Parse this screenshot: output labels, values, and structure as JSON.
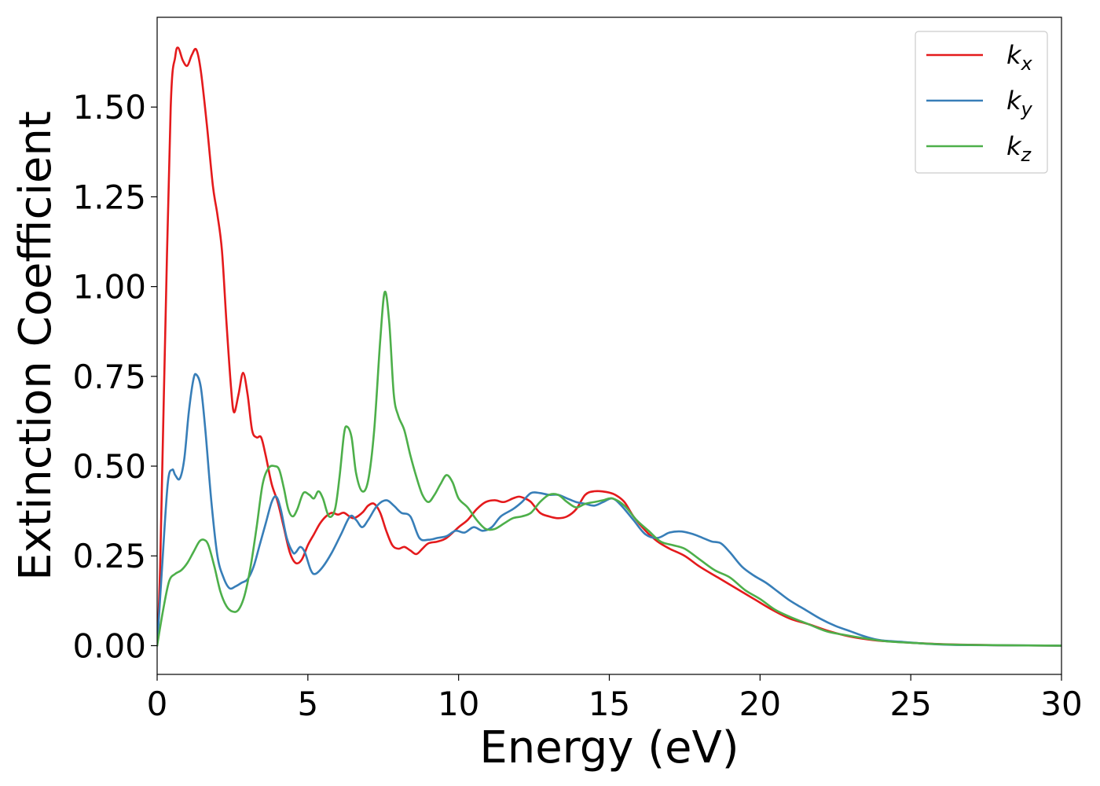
{
  "chart_data": {
    "type": "line",
    "xlabel": "Energy (eV)",
    "ylabel": "Extinction Coefficient",
    "xlim": [
      0,
      30
    ],
    "ylim": [
      -0.08,
      1.75
    ],
    "xticks": [
      0,
      5,
      10,
      15,
      20,
      25,
      30
    ],
    "xtick_labels": [
      "0",
      "5",
      "10",
      "15",
      "20",
      "25",
      "30"
    ],
    "yticks": [
      0.0,
      0.25,
      0.5,
      0.75,
      1.0,
      1.25,
      1.5
    ],
    "ytick_labels": [
      "0.00",
      "0.25",
      "0.50",
      "0.75",
      "1.00",
      "1.25",
      "1.50"
    ],
    "grid": false,
    "legend_position": "top-right",
    "series": [
      {
        "name": "k_x",
        "legend_main": "k",
        "legend_sub": "x",
        "color": "#e41a1c",
        "points": [
          [
            0,
            0.0
          ],
          [
            0.1,
            0.22
          ],
          [
            0.25,
            0.8
          ],
          [
            0.45,
            1.5
          ],
          [
            0.6,
            1.64
          ],
          [
            0.7,
            1.665
          ],
          [
            0.85,
            1.63
          ],
          [
            1.0,
            1.615
          ],
          [
            1.15,
            1.645
          ],
          [
            1.3,
            1.66
          ],
          [
            1.45,
            1.6
          ],
          [
            1.65,
            1.45
          ],
          [
            1.85,
            1.28
          ],
          [
            2.0,
            1.2
          ],
          [
            2.15,
            1.1
          ],
          [
            2.3,
            0.9
          ],
          [
            2.45,
            0.72
          ],
          [
            2.55,
            0.65
          ],
          [
            2.7,
            0.7
          ],
          [
            2.85,
            0.76
          ],
          [
            3.0,
            0.7
          ],
          [
            3.15,
            0.6
          ],
          [
            3.3,
            0.58
          ],
          [
            3.45,
            0.58
          ],
          [
            3.6,
            0.53
          ],
          [
            3.8,
            0.45
          ],
          [
            4.0,
            0.4
          ],
          [
            4.2,
            0.33
          ],
          [
            4.4,
            0.26
          ],
          [
            4.6,
            0.23
          ],
          [
            4.8,
            0.24
          ],
          [
            5.0,
            0.28
          ],
          [
            5.2,
            0.31
          ],
          [
            5.4,
            0.34
          ],
          [
            5.6,
            0.36
          ],
          [
            5.8,
            0.37
          ],
          [
            6.0,
            0.365
          ],
          [
            6.2,
            0.37
          ],
          [
            6.5,
            0.355
          ],
          [
            6.8,
            0.37
          ],
          [
            7.0,
            0.39
          ],
          [
            7.2,
            0.395
          ],
          [
            7.4,
            0.37
          ],
          [
            7.6,
            0.32
          ],
          [
            7.8,
            0.28
          ],
          [
            8.0,
            0.27
          ],
          [
            8.2,
            0.275
          ],
          [
            8.4,
            0.265
          ],
          [
            8.6,
            0.255
          ],
          [
            8.8,
            0.27
          ],
          [
            9.0,
            0.285
          ],
          [
            9.3,
            0.29
          ],
          [
            9.6,
            0.3
          ],
          [
            10.0,
            0.33
          ],
          [
            10.3,
            0.35
          ],
          [
            10.6,
            0.38
          ],
          [
            10.9,
            0.4
          ],
          [
            11.2,
            0.405
          ],
          [
            11.5,
            0.4
          ],
          [
            11.8,
            0.41
          ],
          [
            12.0,
            0.415
          ],
          [
            12.2,
            0.41
          ],
          [
            12.4,
            0.4
          ],
          [
            12.7,
            0.37
          ],
          [
            13.0,
            0.36
          ],
          [
            13.3,
            0.355
          ],
          [
            13.6,
            0.36
          ],
          [
            13.9,
            0.38
          ],
          [
            14.2,
            0.42
          ],
          [
            14.5,
            0.43
          ],
          [
            14.9,
            0.428
          ],
          [
            15.2,
            0.42
          ],
          [
            15.5,
            0.4
          ],
          [
            15.8,
            0.36
          ],
          [
            16.2,
            0.32
          ],
          [
            16.6,
            0.29
          ],
          [
            17.0,
            0.27
          ],
          [
            17.5,
            0.25
          ],
          [
            18.0,
            0.22
          ],
          [
            18.6,
            0.19
          ],
          [
            19.2,
            0.16
          ],
          [
            19.8,
            0.13
          ],
          [
            20.4,
            0.1
          ],
          [
            21.0,
            0.075
          ],
          [
            21.6,
            0.06
          ],
          [
            22.3,
            0.04
          ],
          [
            23.0,
            0.025
          ],
          [
            23.8,
            0.015
          ],
          [
            24.6,
            0.01
          ],
          [
            25.5,
            0.006
          ],
          [
            26.5,
            0.003
          ],
          [
            28.0,
            0.001
          ],
          [
            30.0,
            0.0
          ]
        ]
      },
      {
        "name": "k_y",
        "legend_main": "k",
        "legend_sub": "y",
        "color": "#377eb8",
        "points": [
          [
            0,
            0.0
          ],
          [
            0.15,
            0.2
          ],
          [
            0.35,
            0.45
          ],
          [
            0.5,
            0.49
          ],
          [
            0.6,
            0.475
          ],
          [
            0.75,
            0.465
          ],
          [
            0.9,
            0.52
          ],
          [
            1.05,
            0.65
          ],
          [
            1.2,
            0.74
          ],
          [
            1.3,
            0.755
          ],
          [
            1.45,
            0.72
          ],
          [
            1.6,
            0.6
          ],
          [
            1.8,
            0.4
          ],
          [
            2.0,
            0.25
          ],
          [
            2.2,
            0.19
          ],
          [
            2.4,
            0.16
          ],
          [
            2.6,
            0.165
          ],
          [
            2.8,
            0.175
          ],
          [
            3.0,
            0.185
          ],
          [
            3.2,
            0.22
          ],
          [
            3.4,
            0.28
          ],
          [
            3.6,
            0.34
          ],
          [
            3.8,
            0.4
          ],
          [
            3.95,
            0.415
          ],
          [
            4.1,
            0.38
          ],
          [
            4.3,
            0.3
          ],
          [
            4.5,
            0.26
          ],
          [
            4.6,
            0.26
          ],
          [
            4.75,
            0.275
          ],
          [
            4.9,
            0.26
          ],
          [
            5.1,
            0.21
          ],
          [
            5.25,
            0.2
          ],
          [
            5.5,
            0.22
          ],
          [
            5.8,
            0.26
          ],
          [
            6.1,
            0.31
          ],
          [
            6.4,
            0.36
          ],
          [
            6.6,
            0.35
          ],
          [
            6.8,
            0.33
          ],
          [
            7.0,
            0.35
          ],
          [
            7.3,
            0.39
          ],
          [
            7.6,
            0.405
          ],
          [
            7.85,
            0.39
          ],
          [
            8.1,
            0.37
          ],
          [
            8.4,
            0.36
          ],
          [
            8.7,
            0.3
          ],
          [
            9.0,
            0.295
          ],
          [
            9.3,
            0.3
          ],
          [
            9.6,
            0.305
          ],
          [
            9.9,
            0.32
          ],
          [
            10.2,
            0.315
          ],
          [
            10.5,
            0.33
          ],
          [
            10.8,
            0.32
          ],
          [
            11.1,
            0.33
          ],
          [
            11.4,
            0.36
          ],
          [
            11.8,
            0.38
          ],
          [
            12.1,
            0.4
          ],
          [
            12.4,
            0.425
          ],
          [
            12.7,
            0.425
          ],
          [
            13.0,
            0.42
          ],
          [
            13.3,
            0.42
          ],
          [
            13.6,
            0.41
          ],
          [
            13.9,
            0.4
          ],
          [
            14.2,
            0.395
          ],
          [
            14.5,
            0.39
          ],
          [
            14.8,
            0.4
          ],
          [
            15.1,
            0.41
          ],
          [
            15.4,
            0.39
          ],
          [
            15.8,
            0.35
          ],
          [
            16.2,
            0.31
          ],
          [
            16.6,
            0.3
          ],
          [
            17.0,
            0.315
          ],
          [
            17.4,
            0.318
          ],
          [
            17.8,
            0.31
          ],
          [
            18.1,
            0.3
          ],
          [
            18.4,
            0.29
          ],
          [
            18.7,
            0.285
          ],
          [
            19.0,
            0.26
          ],
          [
            19.4,
            0.22
          ],
          [
            19.8,
            0.195
          ],
          [
            20.2,
            0.175
          ],
          [
            20.6,
            0.15
          ],
          [
            21.0,
            0.125
          ],
          [
            21.5,
            0.1
          ],
          [
            22.0,
            0.075
          ],
          [
            22.5,
            0.055
          ],
          [
            23.0,
            0.04
          ],
          [
            23.5,
            0.025
          ],
          [
            24.0,
            0.015
          ],
          [
            24.8,
            0.01
          ],
          [
            25.6,
            0.005
          ],
          [
            26.5,
            0.002
          ],
          [
            28.0,
            0.001
          ],
          [
            30.0,
            0.0
          ]
        ]
      },
      {
        "name": "k_z",
        "legend_main": "k",
        "legend_sub": "z",
        "color": "#4daf4a",
        "points": [
          [
            0,
            0.0
          ],
          [
            0.2,
            0.1
          ],
          [
            0.4,
            0.18
          ],
          [
            0.6,
            0.2
          ],
          [
            0.8,
            0.21
          ],
          [
            1.0,
            0.23
          ],
          [
            1.2,
            0.26
          ],
          [
            1.4,
            0.29
          ],
          [
            1.55,
            0.295
          ],
          [
            1.7,
            0.28
          ],
          [
            1.9,
            0.22
          ],
          [
            2.1,
            0.15
          ],
          [
            2.3,
            0.11
          ],
          [
            2.5,
            0.095
          ],
          [
            2.7,
            0.1
          ],
          [
            2.9,
            0.14
          ],
          [
            3.1,
            0.22
          ],
          [
            3.3,
            0.33
          ],
          [
            3.5,
            0.45
          ],
          [
            3.7,
            0.495
          ],
          [
            3.9,
            0.5
          ],
          [
            4.05,
            0.49
          ],
          [
            4.2,
            0.44
          ],
          [
            4.35,
            0.38
          ],
          [
            4.5,
            0.36
          ],
          [
            4.65,
            0.38
          ],
          [
            4.85,
            0.425
          ],
          [
            5.05,
            0.42
          ],
          [
            5.2,
            0.41
          ],
          [
            5.35,
            0.43
          ],
          [
            5.5,
            0.41
          ],
          [
            5.7,
            0.36
          ],
          [
            5.9,
            0.38
          ],
          [
            6.05,
            0.47
          ],
          [
            6.2,
            0.59
          ],
          [
            6.3,
            0.61
          ],
          [
            6.45,
            0.58
          ],
          [
            6.6,
            0.48
          ],
          [
            6.8,
            0.43
          ],
          [
            7.0,
            0.46
          ],
          [
            7.2,
            0.6
          ],
          [
            7.4,
            0.85
          ],
          [
            7.55,
            0.985
          ],
          [
            7.7,
            0.9
          ],
          [
            7.85,
            0.7
          ],
          [
            8.0,
            0.64
          ],
          [
            8.2,
            0.6
          ],
          [
            8.4,
            0.53
          ],
          [
            8.6,
            0.47
          ],
          [
            8.8,
            0.42
          ],
          [
            9.0,
            0.4
          ],
          [
            9.2,
            0.42
          ],
          [
            9.4,
            0.45
          ],
          [
            9.6,
            0.475
          ],
          [
            9.8,
            0.455
          ],
          [
            10.0,
            0.41
          ],
          [
            10.3,
            0.385
          ],
          [
            10.6,
            0.35
          ],
          [
            10.9,
            0.325
          ],
          [
            11.2,
            0.325
          ],
          [
            11.5,
            0.34
          ],
          [
            11.8,
            0.355
          ],
          [
            12.1,
            0.36
          ],
          [
            12.4,
            0.37
          ],
          [
            12.7,
            0.4
          ],
          [
            13.0,
            0.42
          ],
          [
            13.3,
            0.42
          ],
          [
            13.6,
            0.4
          ],
          [
            13.9,
            0.385
          ],
          [
            14.2,
            0.395
          ],
          [
            14.5,
            0.4
          ],
          [
            14.8,
            0.405
          ],
          [
            15.1,
            0.41
          ],
          [
            15.5,
            0.39
          ],
          [
            15.9,
            0.35
          ],
          [
            16.3,
            0.32
          ],
          [
            16.7,
            0.29
          ],
          [
            17.1,
            0.28
          ],
          [
            17.5,
            0.27
          ],
          [
            18.0,
            0.24
          ],
          [
            18.5,
            0.21
          ],
          [
            19.0,
            0.19
          ],
          [
            19.5,
            0.155
          ],
          [
            20.0,
            0.13
          ],
          [
            20.5,
            0.1
          ],
          [
            21.0,
            0.08
          ],
          [
            21.6,
            0.06
          ],
          [
            22.2,
            0.04
          ],
          [
            22.8,
            0.03
          ],
          [
            23.5,
            0.02
          ],
          [
            24.2,
            0.012
          ],
          [
            25.0,
            0.008
          ],
          [
            26.0,
            0.004
          ],
          [
            27.0,
            0.002
          ],
          [
            30.0,
            0.0
          ]
        ]
      }
    ]
  }
}
